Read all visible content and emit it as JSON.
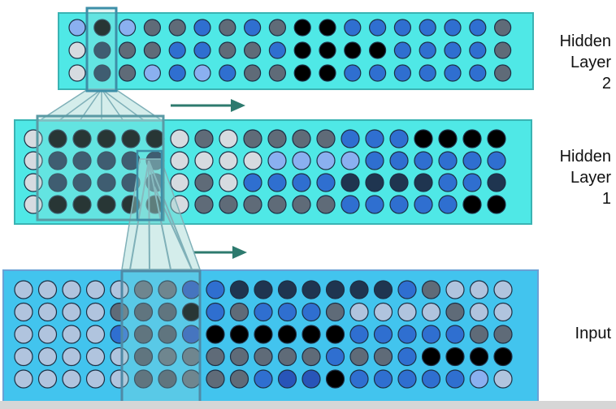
{
  "labels": {
    "hidden2": [
      "Hidden",
      "Layer",
      "2"
    ],
    "hidden1": [
      "Hidden",
      "Layer",
      "1"
    ],
    "input": "Input"
  },
  "palette": {
    "k": "#000000",
    "n": "#1f3550",
    "d": "#2c5a8c",
    "b": "#2855b8",
    "m": "#2f6fd0",
    "s": "#4e7fe0",
    "l": "#8ab0f0",
    "g": "#5f6b78",
    "h": "#4b5563",
    "p": "#b0c4de",
    "w": "#d6dbe0",
    "panel_cyan": "#4fe8e6",
    "panel_blue": "#42c4ee",
    "window": "#7fb0b8",
    "arrow": "#2d7a6e"
  },
  "layers": {
    "hidden2": {
      "rows": [
        "lklggmgmgkkmmmmmmg",
        "wnggmmggmkkkkmmmmg",
        "wnglmlmggkkmmmmmmg"
      ]
    },
    "hidden1": {
      "rows": [
        "wkkkkkwgwggggmmmkkkk",
        "wnnnnnwwwwllllmmmmmm",
        "wnnnnnwgwmmmmnnnnmmn",
        "wkkkkkwggggggmmmmmkk"
      ]
    },
    "input": {
      "rows": [
        "pppppggbmnnnnnnnmgppp",
        "ppppghhkmgmmmgppppgpp",
        "ppppmhhbkkkkkkmmmmmgg",
        "ppppphgggggggmggmkkkk",
        "ppppphhgggmbbkmmmmmlp"
      ]
    }
  }
}
